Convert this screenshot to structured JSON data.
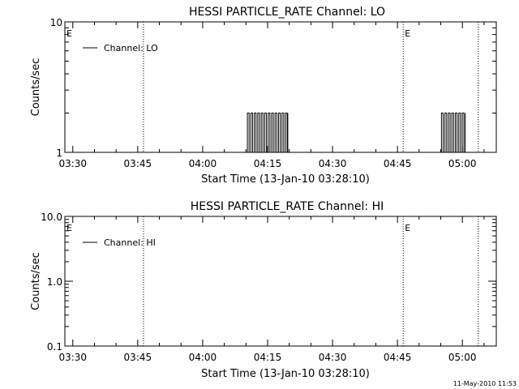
{
  "footer": {
    "timestamp": "11-May-2010 11:53"
  },
  "chart_data": [
    {
      "type": "line",
      "title": "HESSI PARTICLE_RATE Channel: LO",
      "xlabel": "Start Time (13-Jan-10 03:28:10)",
      "ylabel": "Counts/sec",
      "yscale": "log",
      "xlim": [
        "03:28:10",
        "05:07:50"
      ],
      "ylim": [
        1,
        10
      ],
      "x_ticks": [
        "03:30",
        "03:45",
        "04:00",
        "04:15",
        "04:30",
        "04:45",
        "05:00"
      ],
      "y_ticks": [
        "1",
        "10"
      ],
      "legend": {
        "position": "top-left",
        "entries": [
          "Channel: LO"
        ]
      },
      "event_markers": [
        {
          "time": "03:28:10",
          "label": "E"
        },
        {
          "time": "03:46:20",
          "label": ""
        },
        {
          "time": "04:46:20",
          "label": "E"
        },
        {
          "time": "05:03:40",
          "label": ""
        }
      ],
      "series": [
        {
          "name": "Channel: LO",
          "bursts": [
            {
              "start": "04:10:20",
              "end": "04:19:40",
              "low": 1,
              "high": 2,
              "step_seconds": 24
            },
            {
              "start": "04:55:10",
              "end": "05:00:40",
              "low": 1,
              "high": 2,
              "step_seconds": 24
            }
          ]
        }
      ]
    },
    {
      "type": "line",
      "title": "HESSI PARTICLE_RATE Channel: HI",
      "xlabel": "Start Time (13-Jan-10 03:28:10)",
      "ylabel": "Counts/sec",
      "yscale": "log",
      "xlim": [
        "03:28:10",
        "05:07:50"
      ],
      "ylim": [
        0.1,
        10
      ],
      "x_ticks": [
        "03:30",
        "03:45",
        "04:00",
        "04:15",
        "04:30",
        "04:45",
        "05:00"
      ],
      "y_ticks": [
        "0.1",
        "1.0",
        "10.0"
      ],
      "legend": {
        "position": "top-left",
        "entries": [
          "Channel: HI"
        ]
      },
      "event_markers": [
        {
          "time": "03:28:10",
          "label": "E"
        },
        {
          "time": "03:46:20",
          "label": ""
        },
        {
          "time": "04:46:20",
          "label": "E"
        },
        {
          "time": "05:03:40",
          "label": ""
        }
      ],
      "series": [
        {
          "name": "Channel: HI",
          "bursts": []
        }
      ]
    }
  ]
}
